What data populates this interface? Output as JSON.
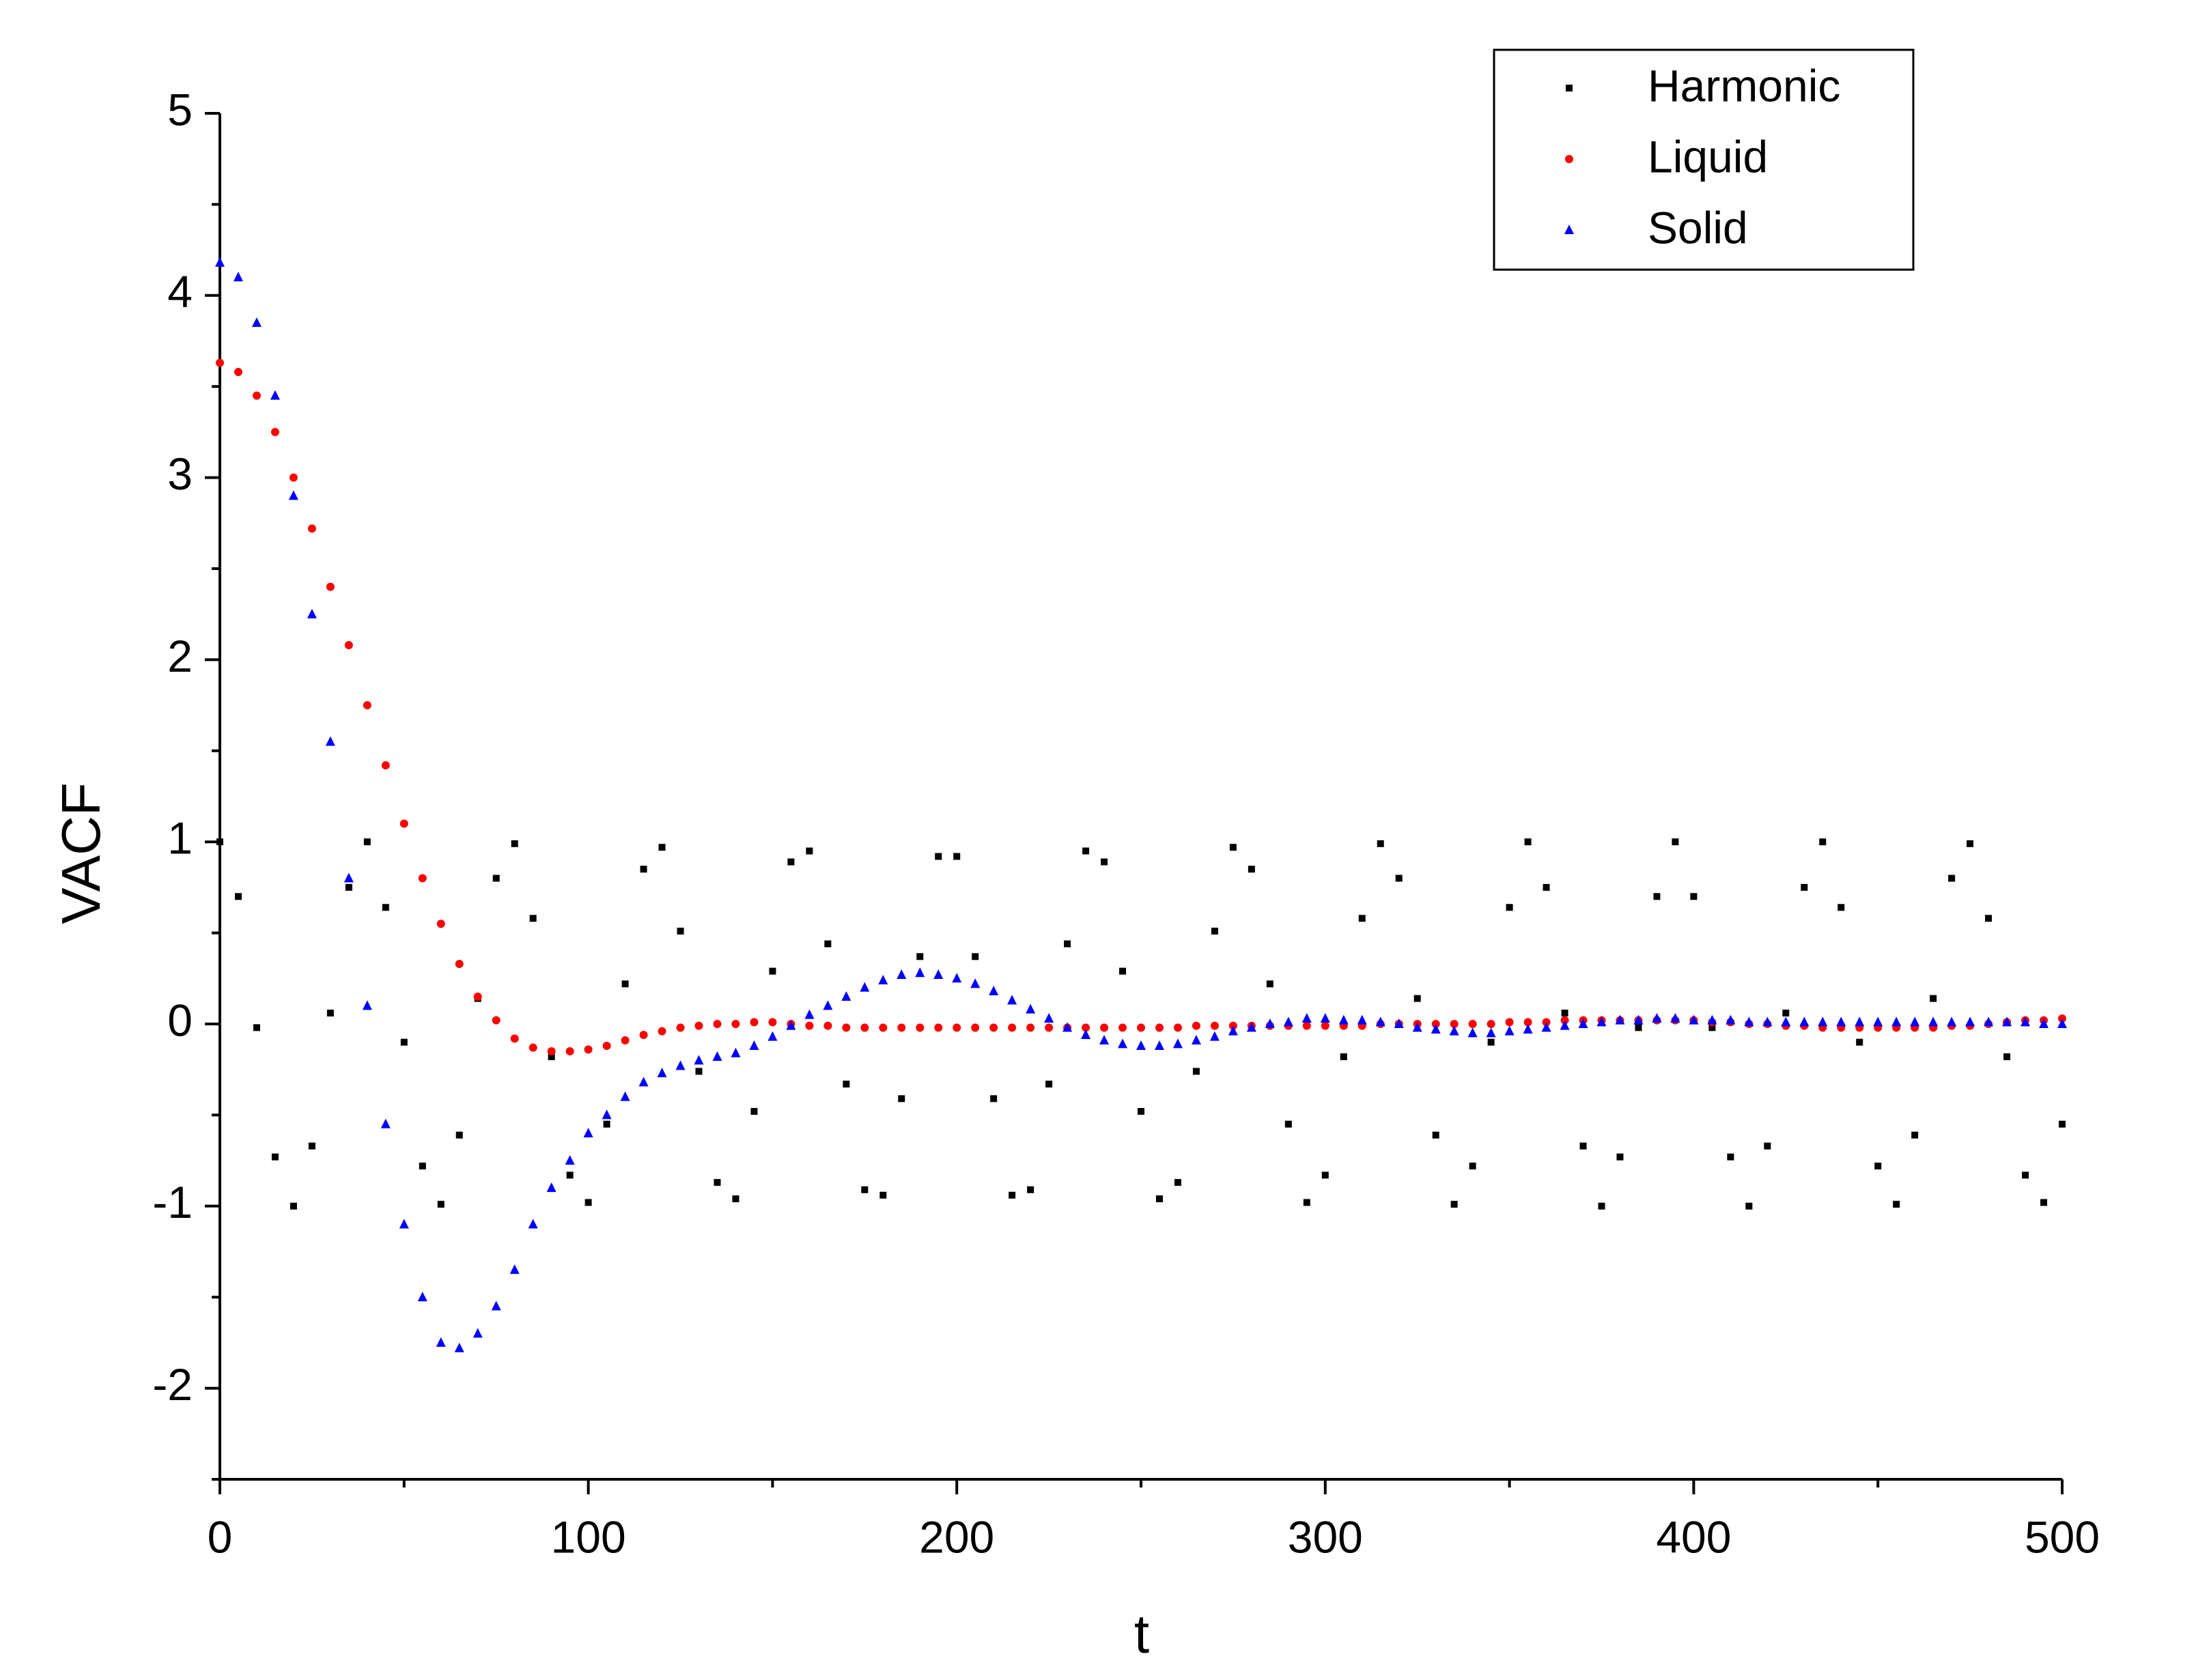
{
  "chart_data": {
    "type": "scatter",
    "x_label": "t",
    "y_label": "VACF",
    "xlim": [
      0,
      500
    ],
    "ylim": [
      -2.5,
      5
    ],
    "xticks": [
      0,
      100,
      200,
      300,
      400,
      500
    ],
    "yticks": [
      -2,
      -1,
      0,
      1,
      2,
      3,
      4,
      5
    ],
    "minor_xticks": [
      50,
      150,
      250,
      350,
      450
    ],
    "minor_yticks": [
      -2.5,
      -1.5,
      -0.5,
      0.5,
      1.5,
      2.5,
      3.5,
      4.5
    ],
    "legend": "upper right",
    "x": [
      0,
      5,
      10,
      15,
      20,
      25,
      30,
      35,
      40,
      45,
      50,
      55,
      60,
      65,
      70,
      75,
      80,
      85,
      90,
      95,
      100,
      105,
      110,
      115,
      120,
      125,
      130,
      135,
      140,
      145,
      150,
      155,
      160,
      165,
      170,
      175,
      180,
      185,
      190,
      195,
      200,
      205,
      210,
      215,
      220,
      225,
      230,
      235,
      240,
      245,
      250,
      255,
      260,
      265,
      270,
      275,
      280,
      285,
      290,
      295,
      300,
      305,
      310,
      315,
      320,
      325,
      330,
      335,
      340,
      345,
      350,
      355,
      360,
      365,
      370,
      375,
      380,
      385,
      390,
      395,
      400,
      405,
      410,
      415,
      420,
      425,
      430,
      435,
      440,
      445,
      450,
      455,
      460,
      465,
      470,
      475,
      480,
      485,
      490,
      495,
      500
    ],
    "series": [
      {
        "name": "Harmonic",
        "color": "#000000",
        "marker": "square",
        "values": [
          1,
          0.7,
          -0.02,
          -0.73,
          -1,
          -0.67,
          0.06,
          0.75,
          1,
          0.64,
          -0.1,
          -0.78,
          -0.99,
          -0.61,
          0.14,
          0.8,
          0.99,
          0.58,
          -0.18,
          -0.83,
          -0.98,
          -0.55,
          0.22,
          0.85,
          0.97,
          0.51,
          -0.26,
          -0.87,
          -0.96,
          -0.48,
          0.29,
          0.89,
          0.95,
          0.44,
          -0.33,
          -0.91,
          -0.94,
          -0.41,
          0.37,
          0.92,
          0.92,
          0.37,
          -0.41,
          -0.94,
          -0.91,
          -0.33,
          0.44,
          0.95,
          0.89,
          0.29,
          -0.48,
          -0.96,
          -0.87,
          -0.26,
          0.51,
          0.97,
          0.85,
          0.22,
          -0.55,
          -0.98,
          -0.83,
          -0.18,
          0.58,
          0.99,
          0.8,
          0.14,
          -0.61,
          -0.99,
          -0.78,
          -0.1,
          0.64,
          1,
          0.75,
          0.06,
          -0.67,
          -1,
          -0.73,
          -0.02,
          0.7,
          1,
          0.7,
          -0.02,
          -0.73,
          -1,
          -0.67,
          0.06,
          0.75,
          1,
          0.64,
          -0.1,
          -0.78,
          -0.99,
          -0.61,
          0.14,
          0.8,
          0.99,
          0.58,
          -0.18,
          -0.83,
          -0.98,
          -0.55
        ]
      },
      {
        "name": "Liquid",
        "color": "#ff0000",
        "marker": "circle",
        "values": [
          3.63,
          3.58,
          3.45,
          3.25,
          3.0,
          2.72,
          2.4,
          2.08,
          1.75,
          1.42,
          1.1,
          0.8,
          0.55,
          0.33,
          0.15,
          0.02,
          -0.08,
          -0.13,
          -0.15,
          -0.15,
          -0.14,
          -0.12,
          -0.09,
          -0.06,
          -0.04,
          -0.02,
          -0.01,
          0,
          0,
          0.01,
          0.01,
          0,
          -0.01,
          -0.01,
          -0.02,
          -0.02,
          -0.02,
          -0.02,
          -0.02,
          -0.02,
          -0.02,
          -0.02,
          -0.02,
          -0.02,
          -0.02,
          -0.02,
          -0.02,
          -0.02,
          -0.02,
          -0.02,
          -0.02,
          -0.02,
          -0.02,
          -0.01,
          -0.01,
          -0.01,
          -0.01,
          -0.01,
          -0.01,
          -0.01,
          -0.01,
          -0.01,
          -0.01,
          0,
          0,
          0,
          0,
          0,
          0,
          0,
          0.01,
          0.01,
          0.01,
          0.02,
          0.02,
          0.02,
          0.02,
          0.02,
          0.02,
          0.02,
          0.02,
          0.01,
          0.01,
          0,
          0,
          -0.01,
          -0.01,
          -0.02,
          -0.02,
          -0.02,
          -0.02,
          -0.02,
          -0.02,
          -0.02,
          -0.01,
          -0.01,
          0,
          0.01,
          0.02,
          0.02,
          0.03
        ]
      },
      {
        "name": "Solid",
        "color": "#0000ff",
        "marker": "triangle",
        "values": [
          4.18,
          4.1,
          3.85,
          3.45,
          2.9,
          2.25,
          1.55,
          0.8,
          0.1,
          -0.55,
          -1.1,
          -1.5,
          -1.75,
          -1.78,
          -1.7,
          -1.55,
          -1.35,
          -1.1,
          -0.9,
          -0.75,
          -0.6,
          -0.5,
          -0.4,
          -0.32,
          -0.27,
          -0.23,
          -0.2,
          -0.18,
          -0.16,
          -0.12,
          -0.07,
          -0.01,
          0.05,
          0.1,
          0.15,
          0.2,
          0.24,
          0.27,
          0.28,
          0.27,
          0.25,
          0.22,
          0.18,
          0.13,
          0.08,
          0.03,
          -0.02,
          -0.06,
          -0.09,
          -0.11,
          -0.12,
          -0.12,
          -0.11,
          -0.09,
          -0.07,
          -0.04,
          -0.02,
          0,
          0.01,
          0.03,
          0.03,
          0.02,
          0.02,
          0.01,
          0,
          -0.02,
          -0.03,
          -0.04,
          -0.05,
          -0.05,
          -0.04,
          -0.03,
          -0.02,
          -0.01,
          0,
          0.01,
          0.02,
          0.02,
          0.03,
          0.03,
          0.02,
          0.02,
          0.02,
          0.01,
          0.01,
          0.01,
          0.01,
          0.01,
          0.01,
          0.01,
          0.01,
          0.01,
          0.01,
          0.01,
          0.01,
          0.01,
          0.01,
          0.01,
          0.01,
          0,
          0
        ]
      }
    ]
  }
}
